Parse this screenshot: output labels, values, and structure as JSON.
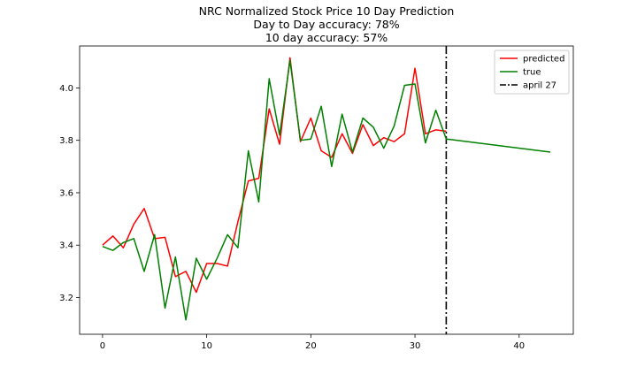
{
  "chart_data": {
    "type": "line",
    "title_lines": [
      "NRC Normalized Stock Price 10 Day Prediction",
      "Day to Day accuracy: 78%",
      "10 day accuracy: 57%"
    ],
    "xlabel": "",
    "ylabel": "",
    "xlim": [
      -2.2,
      45.2
    ],
    "ylim": [
      3.06,
      4.16
    ],
    "x_ticks": [
      0,
      10,
      20,
      30,
      40
    ],
    "y_ticks": [
      3.2,
      3.4,
      3.6,
      3.8,
      4.0
    ],
    "y_tick_labels": [
      "3.2",
      "3.4",
      "3.6",
      "3.8",
      "4.0"
    ],
    "grid": false,
    "legend_position": "top-right",
    "series": [
      {
        "name": "predicted",
        "color": "#ff0000",
        "x": [
          0,
          1,
          2,
          3,
          4,
          5,
          6,
          7,
          8,
          9,
          10,
          11,
          12,
          13,
          14,
          15,
          16,
          17,
          18,
          19,
          20,
          21,
          22,
          23,
          24,
          25,
          26,
          27,
          28,
          29,
          30,
          31,
          32,
          33
        ],
        "y": [
          3.4,
          3.435,
          3.39,
          3.48,
          3.54,
          3.425,
          3.43,
          3.28,
          3.3,
          3.22,
          3.33,
          3.33,
          3.32,
          3.49,
          3.645,
          3.655,
          3.92,
          3.785,
          4.115,
          3.795,
          3.885,
          3.76,
          3.735,
          3.825,
          3.75,
          3.86,
          3.78,
          3.81,
          3.795,
          3.825,
          4.075,
          3.825,
          3.84,
          3.835
        ]
      },
      {
        "name": "true",
        "color": "#008000",
        "x": [
          0,
          1,
          2,
          3,
          4,
          5,
          6,
          7,
          8,
          9,
          10,
          11,
          12,
          13,
          14,
          15,
          16,
          17,
          18,
          19,
          20,
          21,
          22,
          23,
          24,
          25,
          26,
          27,
          28,
          29,
          30,
          31,
          32,
          33,
          43
        ],
        "y": [
          3.395,
          3.38,
          3.41,
          3.425,
          3.3,
          3.44,
          3.16,
          3.355,
          3.115,
          3.35,
          3.27,
          3.35,
          3.44,
          3.39,
          3.76,
          3.565,
          4.035,
          3.82,
          4.105,
          3.8,
          3.805,
          3.93,
          3.7,
          3.9,
          3.755,
          3.885,
          3.85,
          3.77,
          3.855,
          4.01,
          4.015,
          3.79,
          3.915,
          3.805,
          3.755
        ]
      }
    ],
    "reference_line": {
      "name": "april 27",
      "x": 33,
      "color": "#000000",
      "style": "dash-dot"
    }
  }
}
